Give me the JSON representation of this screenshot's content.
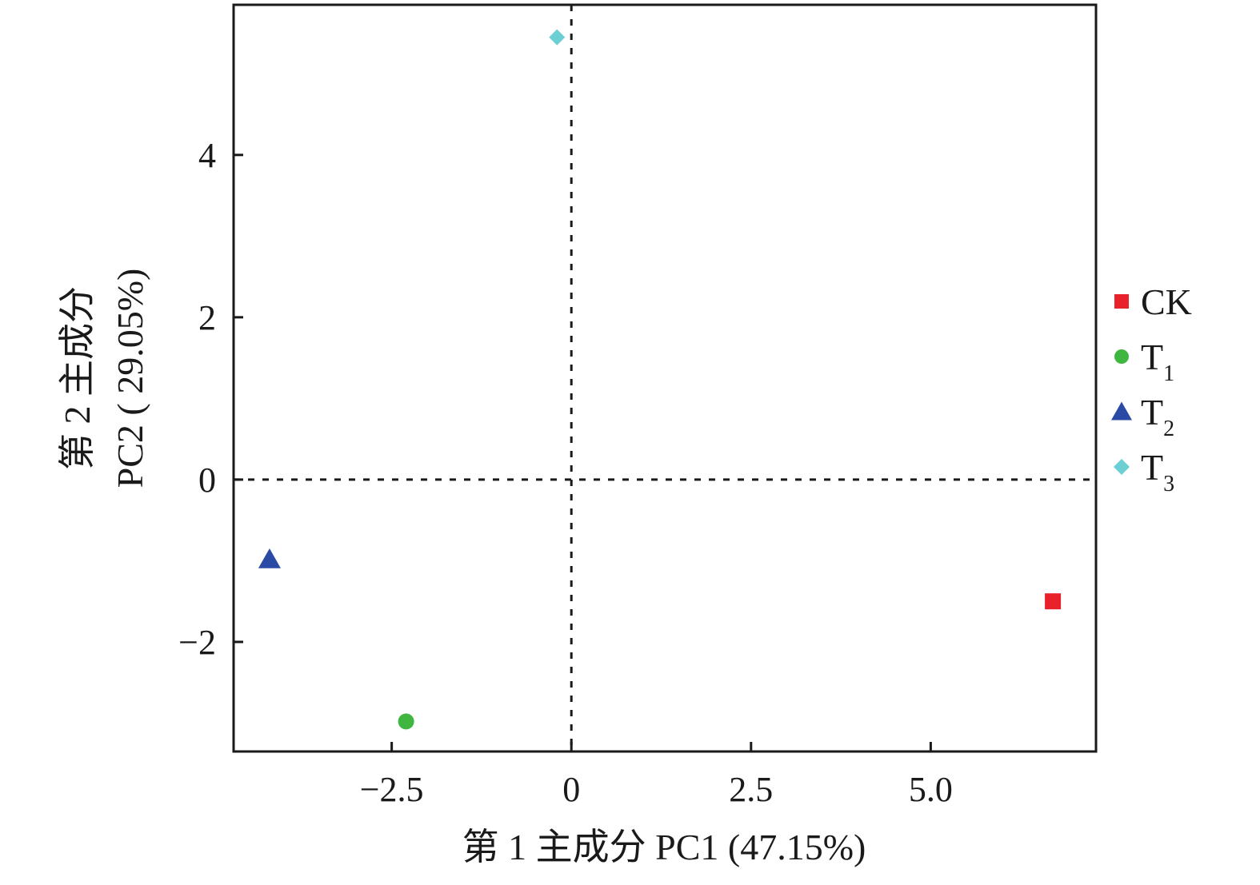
{
  "chart_data": {
    "type": "scatter",
    "xlabel": "第 1 主成分 PC1 (47.15%)",
    "ylabel_line1": "第 2 主成分",
    "ylabel_line2": "PC2 ( 29.05%)",
    "xlim": [
      -4.7,
      7.3
    ],
    "ylim": [
      -3.35,
      5.85
    ],
    "x_ticks": [
      {
        "value": -2.5,
        "label": "−2.5"
      },
      {
        "value": 0,
        "label": "0"
      },
      {
        "value": 2.5,
        "label": "2.5"
      },
      {
        "value": 5.0,
        "label": "5.0"
      }
    ],
    "y_ticks": [
      {
        "value": -2,
        "label": "−2"
      },
      {
        "value": 0,
        "label": "0"
      },
      {
        "value": 2,
        "label": "2"
      },
      {
        "value": 4,
        "label": "4"
      }
    ],
    "reference_lines": {
      "x": 0,
      "y": 0,
      "style": "dashed"
    },
    "grid": false,
    "legend_position": "right",
    "series": [
      {
        "name": "CK",
        "name_base": "CK",
        "name_sub": "",
        "marker": "square",
        "color": "#e8212b",
        "points": [
          {
            "x": 6.7,
            "y": -1.5
          }
        ]
      },
      {
        "name": "T1",
        "name_base": "T",
        "name_sub": "1",
        "marker": "circle",
        "color": "#3fb63f",
        "points": [
          {
            "x": -2.3,
            "y": -2.98
          }
        ]
      },
      {
        "name": "T2",
        "name_base": "T",
        "name_sub": "2",
        "marker": "triangle",
        "color": "#2a4aa6",
        "points": [
          {
            "x": -4.2,
            "y": -0.98
          }
        ]
      },
      {
        "name": "T3",
        "name_base": "T",
        "name_sub": "3",
        "marker": "diamond",
        "color": "#6ccfd4",
        "points": [
          {
            "x": -0.2,
            "y": 5.45
          }
        ]
      }
    ]
  }
}
